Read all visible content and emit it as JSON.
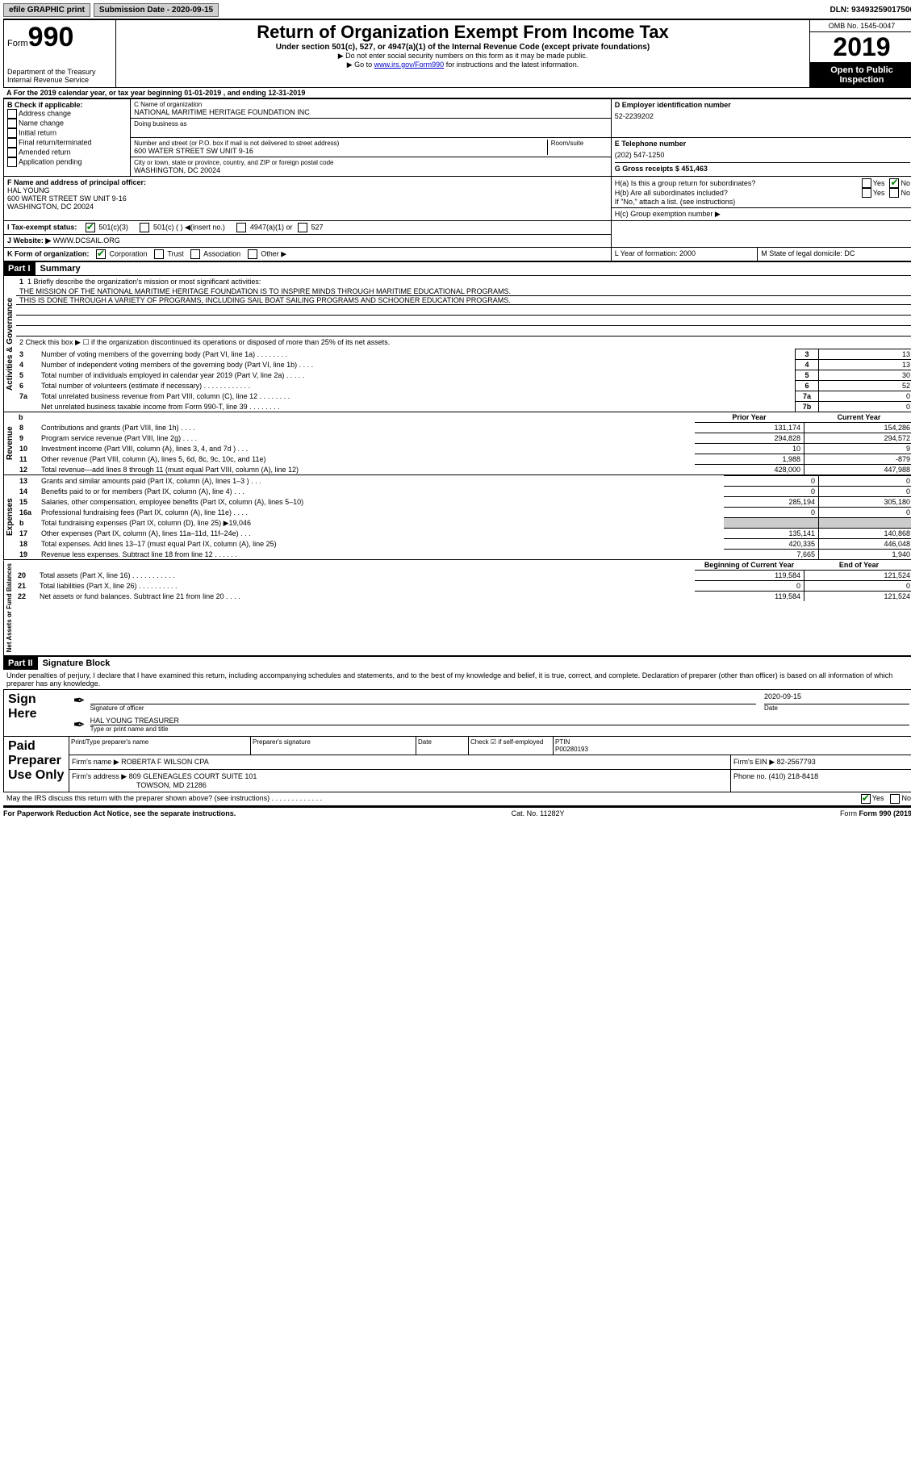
{
  "topbar": {
    "efile": "efile GRAPHIC print",
    "submission_label": "Submission Date - 2020-09-15",
    "dln": "DLN: 93493259017500"
  },
  "header": {
    "form_label": "Form",
    "form_number": "990",
    "dept": "Department of the Treasury",
    "irs": "Internal Revenue Service",
    "title": "Return of Organization Exempt From Income Tax",
    "subtitle": "Under section 501(c), 527, or 4947(a)(1) of the Internal Revenue Code (except private foundations)",
    "instr1": "▶ Do not enter social security numbers on this form as it may be made public.",
    "instr2_prefix": "▶ Go to ",
    "instr2_link": "www.irs.gov/Form990",
    "instr2_suffix": " for instructions and the latest information.",
    "omb": "OMB No. 1545-0047",
    "year": "2019",
    "open": "Open to Public Inspection"
  },
  "lineA": "A For the 2019 calendar year, or tax year beginning 01-01-2019    , and ending 12-31-2019",
  "boxB": {
    "label": "B Check if applicable:",
    "items": [
      "Address change",
      "Name change",
      "Initial return",
      "Final return/terminated",
      "Amended return",
      "Application pending"
    ]
  },
  "boxC": {
    "name_label": "C Name of organization",
    "name": "NATIONAL MARITIME HERITAGE FOUNDATION INC",
    "dba_label": "Doing business as",
    "street_label": "Number and street (or P.O. box if mail is not delivered to street address)",
    "room_label": "Room/suite",
    "street": "600 WATER STREET SW UNIT 9-16",
    "city_label": "City or town, state or province, country, and ZIP or foreign postal code",
    "city": "WASHINGTON, DC  20024"
  },
  "boxD": {
    "label": "D Employer identification number",
    "value": "52-2239202"
  },
  "boxE": {
    "label": "E Telephone number",
    "value": "(202) 547-1250"
  },
  "boxG": {
    "label": "G Gross receipts $ 451,463"
  },
  "boxF": {
    "label": "F  Name and address of principal officer:",
    "name": "HAL YOUNG",
    "addr1": "600 WATER STREET SW UNIT 9-16",
    "addr2": "WASHINGTON, DC  20024"
  },
  "boxH": {
    "ha": "H(a)  Is this a group return for subordinates?",
    "hb": "H(b)  Are all subordinates included?",
    "hb_note": "If \"No,\" attach a list. (see instructions)",
    "hc": "H(c)  Group exemption number ▶",
    "yes": "Yes",
    "no": "No"
  },
  "boxI": {
    "label": "I  Tax-exempt status:",
    "opt1": "501(c)(3)",
    "opt2": "501(c) (   ) ◀(insert no.)",
    "opt3": "4947(a)(1) or",
    "opt4": "527"
  },
  "boxJ": {
    "label": "J  Website: ▶",
    "value": "WWW.DCSAIL.ORG"
  },
  "boxK": {
    "label": "K Form of organization:",
    "opts": [
      "Corporation",
      "Trust",
      "Association",
      "Other ▶"
    ]
  },
  "boxL": {
    "label": "L Year of formation: 2000"
  },
  "boxM": {
    "label": "M State of legal domicile: DC"
  },
  "part1": {
    "header": "Part I",
    "title": "Summary",
    "line1_label": "1  Briefly describe the organization's mission or most significant activities:",
    "mission1": "THE MISSION OF THE NATIONAL MARITIME HERITAGE FOUNDATION IS TO INSPIRE MINDS THROUGH MARITIME EDUCATIONAL PROGRAMS.",
    "mission2": "THIS IS DONE THROUGH A VARIETY OF PROGRAMS, INCLUDING SAIL BOAT SAILING PROGRAMS AND SCHOONER EDUCATION PROGRAMS.",
    "line2": "2   Check this box ▶ ☐  if the organization discontinued its operations or disposed of more than 25% of its net assets.",
    "governance_label": "Activities & Governance",
    "revenue_label": "Revenue",
    "expenses_label": "Expenses",
    "netassets_label": "Net Assets or Fund Balances",
    "rows_gov": [
      {
        "n": "3",
        "label": "Number of voting members of the governing body (Part VI, line 1a)  .   .   .   .   .   .   .   .",
        "box": "3",
        "val": "13"
      },
      {
        "n": "4",
        "label": "Number of independent voting members of the governing body (Part VI, line 1b)   .   .   .   .",
        "box": "4",
        "val": "13"
      },
      {
        "n": "5",
        "label": "Total number of individuals employed in calendar year 2019 (Part V, line 2a)   .   .   .   .   .",
        "box": "5",
        "val": "30"
      },
      {
        "n": "6",
        "label": "Total number of volunteers (estimate if necessary)    .   .   .   .   .   .   .   .   .   .   .   .",
        "box": "6",
        "val": "52"
      },
      {
        "n": "7a",
        "label": "Total unrelated business revenue from Part VIII, column (C), line 12  .   .   .   .   .   .   .   .",
        "box": "7a",
        "val": "0"
      },
      {
        "n": "",
        "label": "Net unrelated business taxable income from Form 990-T, line 39    .   .   .   .   .   .   .   .",
        "box": "7b",
        "val": "0"
      }
    ],
    "prior_year": "Prior Year",
    "current_year": "Current Year",
    "rows_rev": [
      {
        "n": "8",
        "label": "Contributions and grants (Part VIII, line 1h)   .   .   .   .",
        "py": "131,174",
        "cy": "154,286"
      },
      {
        "n": "9",
        "label": "Program service revenue (Part VIII, line 2g)   .   .   .   .",
        "py": "294,828",
        "cy": "294,572"
      },
      {
        "n": "10",
        "label": "Investment income (Part VIII, column (A), lines 3, 4, and 7d )   .   .   .",
        "py": "10",
        "cy": "9"
      },
      {
        "n": "11",
        "label": "Other revenue (Part VIII, column (A), lines 5, 6d, 8c, 9c, 10c, and 11e)",
        "py": "1,988",
        "cy": "-879"
      },
      {
        "n": "12",
        "label": "Total revenue—add lines 8 through 11 (must equal Part VIII, column (A), line 12)",
        "py": "428,000",
        "cy": "447,988"
      }
    ],
    "rows_exp": [
      {
        "n": "13",
        "label": "Grants and similar amounts paid (Part IX, column (A), lines 1–3 )   .   .   .",
        "py": "0",
        "cy": "0"
      },
      {
        "n": "14",
        "label": "Benefits paid to or for members (Part IX, column (A), line 4)   .   .   .",
        "py": "0",
        "cy": "0"
      },
      {
        "n": "15",
        "label": "Salaries, other compensation, employee benefits (Part IX, column (A), lines 5–10)",
        "py": "285,194",
        "cy": "305,180"
      },
      {
        "n": "16a",
        "label": "Professional fundraising fees (Part IX, column (A), line 11e)   .   .   .   .",
        "py": "0",
        "cy": "0"
      },
      {
        "n": "b",
        "label": "Total fundraising expenses (Part IX, column (D), line 25) ▶19,046",
        "gray": true
      },
      {
        "n": "17",
        "label": "Other expenses (Part IX, column (A), lines 11a–11d, 11f–24e)   .   .   .",
        "py": "135,141",
        "cy": "140,868"
      },
      {
        "n": "18",
        "label": "Total expenses. Add lines 13–17 (must equal Part IX, column (A), line 25)",
        "py": "420,335",
        "cy": "446,048"
      },
      {
        "n": "19",
        "label": "Revenue less expenses. Subtract line 18 from line 12   .   .   .   .   .   .",
        "py": "7,665",
        "cy": "1,940"
      }
    ],
    "beg_year": "Beginning of Current Year",
    "end_year": "End of Year",
    "rows_net": [
      {
        "n": "20",
        "label": "Total assets (Part X, line 16)  .   .   .   .   .   .   .   .   .   .   .",
        "py": "119,584",
        "cy": "121,524"
      },
      {
        "n": "21",
        "label": "Total liabilities (Part X, line 26)  .   .   .   .   .   .   .   .   .   .",
        "py": "0",
        "cy": "0"
      },
      {
        "n": "22",
        "label": "Net assets or fund balances. Subtract line 21 from line 20   .   .   .   .",
        "py": "119,584",
        "cy": "121,524"
      }
    ]
  },
  "part2": {
    "header": "Part II",
    "title": "Signature Block",
    "declaration": "Under penalties of perjury, I declare that I have examined this return, including accompanying schedules and statements, and to the best of my knowledge and belief, it is true, correct, and complete. Declaration of preparer (other than officer) is based on all information of which preparer has any knowledge.",
    "sign_here": "Sign Here",
    "sig_officer": "Signature of officer",
    "sig_date": "2020-09-15",
    "date_label": "Date",
    "officer_name": "HAL YOUNG  TREASURER",
    "officer_name_label": "Type or print name and title",
    "paid": "Paid Preparer Use Only",
    "prep_name_label": "Print/Type preparer's name",
    "prep_sig_label": "Preparer's signature",
    "prep_date_label": "Date",
    "check_if": "Check ☑ if self-employed",
    "ptin_label": "PTIN",
    "ptin": "P00280193",
    "firm_name_label": "Firm's name    ▶",
    "firm_name": "ROBERTA F WILSON CPA",
    "firm_ein_label": "Firm's EIN ▶",
    "firm_ein": "82-2567793",
    "firm_addr_label": "Firm's address ▶",
    "firm_addr1": "809 GLENEAGLES COURT SUITE 101",
    "firm_addr2": "TOWSON, MD  21286",
    "phone_label": "Phone no. (410) 218-8418",
    "discuss": "May the IRS discuss this return with the preparer shown above? (see instructions)   .   .   .   .   .   .   .   .   .   .   .   .   .",
    "yes": "Yes",
    "no": "No"
  },
  "footer": {
    "paperwork": "For Paperwork Reduction Act Notice, see the separate instructions.",
    "cat": "Cat. No. 11282Y",
    "form": "Form 990 (2019)"
  }
}
